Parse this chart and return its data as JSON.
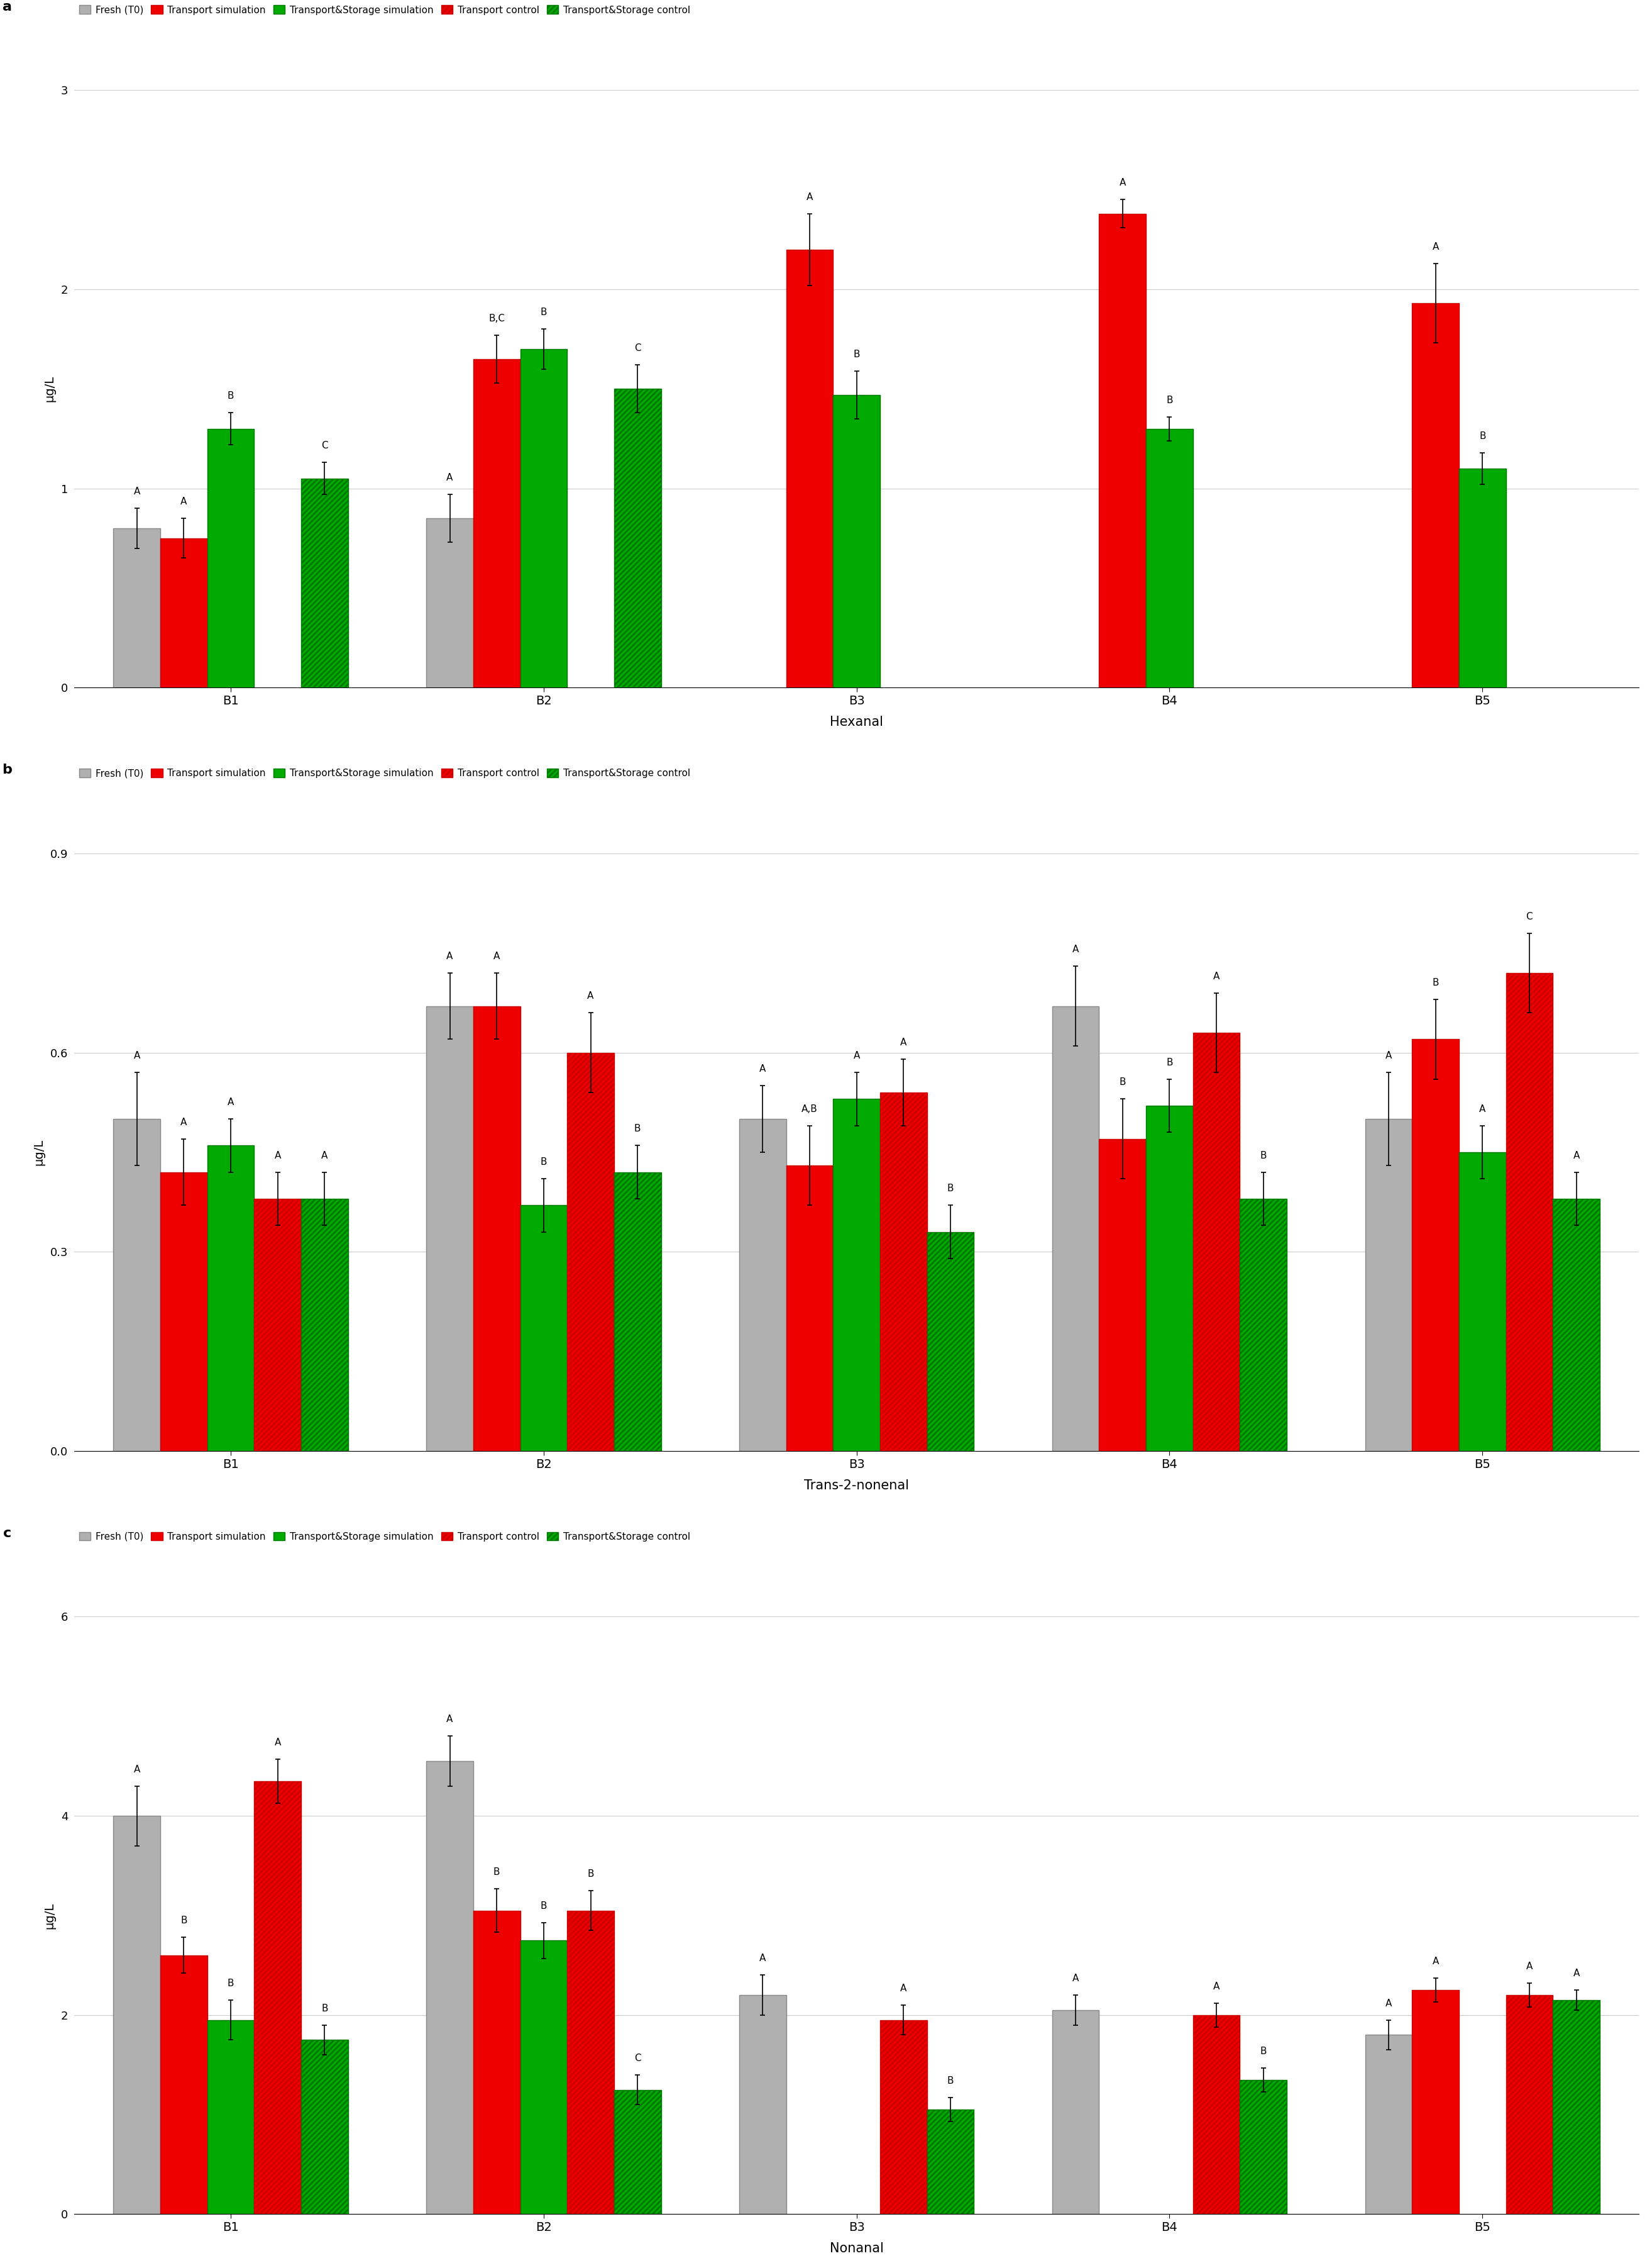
{
  "panel_a": {
    "title_label": "a",
    "xlabel": "Hexanal",
    "ylabel": "μg/L",
    "ylim": [
      0,
      3
    ],
    "yticks": [
      0,
      1,
      2,
      3
    ],
    "ytick_labels": [
      "0",
      "1",
      "2",
      "3"
    ],
    "categories": [
      "B1",
      "B2",
      "B3",
      "B4",
      "B5"
    ],
    "series_values": {
      "Fresh (T0)": [
        0.8,
        0.85,
        null,
        null,
        null
      ],
      "Transport simulation": [
        0.75,
        1.65,
        2.2,
        2.38,
        1.93
      ],
      "Transport&Storage simulation": [
        1.3,
        1.7,
        1.47,
        1.3,
        1.1
      ],
      "Transport control": [
        null,
        null,
        null,
        null,
        null
      ],
      "Transport&Storage control": [
        1.05,
        1.5,
        null,
        null,
        null
      ]
    },
    "series_errors": {
      "Fresh (T0)": [
        0.1,
        0.12,
        null,
        null,
        null
      ],
      "Transport simulation": [
        0.1,
        0.12,
        0.18,
        0.07,
        0.2
      ],
      "Transport&Storage simulation": [
        0.08,
        0.1,
        0.12,
        0.06,
        0.08
      ],
      "Transport control": [
        null,
        null,
        null,
        null,
        null
      ],
      "Transport&Storage control": [
        0.08,
        0.12,
        null,
        null,
        null
      ]
    },
    "series_letters": {
      "Fresh (T0)": [
        "A",
        "A",
        null,
        null,
        null
      ],
      "Transport simulation": [
        "A",
        "B,C",
        "A",
        "A",
        "A"
      ],
      "Transport&Storage simulation": [
        "B",
        "B",
        "B",
        "B",
        "B"
      ],
      "Transport control": [
        null,
        null,
        null,
        null,
        null
      ],
      "Transport&Storage control": [
        "C",
        "C",
        null,
        null,
        null
      ]
    }
  },
  "panel_b": {
    "title_label": "b",
    "xlabel": "Trans-2-nonenal",
    "ylabel": "μg/L",
    "ylim": [
      0.0,
      0.9
    ],
    "yticks": [
      0.0,
      0.3,
      0.6,
      0.9
    ],
    "ytick_labels": [
      "0.0",
      "0.3",
      "0.6",
      "0.9"
    ],
    "categories": [
      "B1",
      "B2",
      "B3",
      "B4",
      "B5"
    ],
    "series_values": {
      "Fresh (T0)": [
        0.5,
        0.67,
        0.5,
        0.67,
        0.5
      ],
      "Transport simulation": [
        0.42,
        0.67,
        0.43,
        0.47,
        0.62
      ],
      "Transport&Storage simulation": [
        0.46,
        0.37,
        0.53,
        0.52,
        0.45
      ],
      "Transport control": [
        0.38,
        0.6,
        0.54,
        0.63,
        0.72
      ],
      "Transport&Storage control": [
        0.38,
        0.42,
        0.33,
        0.38,
        0.38
      ]
    },
    "series_errors": {
      "Fresh (T0)": [
        0.07,
        0.05,
        0.05,
        0.06,
        0.07
      ],
      "Transport simulation": [
        0.05,
        0.05,
        0.06,
        0.06,
        0.06
      ],
      "Transport&Storage simulation": [
        0.04,
        0.04,
        0.04,
        0.04,
        0.04
      ],
      "Transport control": [
        0.04,
        0.06,
        0.05,
        0.06,
        0.06
      ],
      "Transport&Storage control": [
        0.04,
        0.04,
        0.04,
        0.04,
        0.04
      ]
    },
    "series_letters": {
      "Fresh (T0)": [
        "A",
        "A",
        "A",
        "A",
        "A"
      ],
      "Transport simulation": [
        "A",
        "A",
        "A,B",
        "B",
        "B"
      ],
      "Transport&Storage simulation": [
        "A",
        "B",
        "A",
        "B",
        "A"
      ],
      "Transport control": [
        "A",
        "A",
        "A",
        "A",
        "C"
      ],
      "Transport&Storage control": [
        "A",
        "B",
        "B",
        "B",
        "A"
      ]
    }
  },
  "panel_c": {
    "title_label": "c",
    "xlabel": "Nonanal",
    "ylabel": "μg/L",
    "ylim": [
      0,
      6
    ],
    "yticks": [
      0,
      2,
      4,
      6
    ],
    "ytick_labels": [
      "0",
      "2",
      "4",
      "6"
    ],
    "categories": [
      "B1",
      "B2",
      "B3",
      "B4",
      "B5"
    ],
    "series_values": {
      "Fresh (T0)": [
        4.0,
        4.55,
        2.2,
        2.05,
        1.8
      ],
      "Transport simulation": [
        2.6,
        3.05,
        null,
        null,
        2.25
      ],
      "Transport&Storage simulation": [
        1.95,
        2.75,
        null,
        null,
        null
      ],
      "Transport control": [
        4.35,
        3.05,
        1.95,
        2.0,
        2.2
      ],
      "Transport&Storage control": [
        1.75,
        1.25,
        1.05,
        1.35,
        2.15
      ]
    },
    "series_errors": {
      "Fresh (T0)": [
        0.3,
        0.25,
        0.2,
        0.15,
        0.15
      ],
      "Transport simulation": [
        0.18,
        0.22,
        null,
        null,
        0.12
      ],
      "Transport&Storage simulation": [
        0.2,
        0.18,
        null,
        null,
        null
      ],
      "Transport control": [
        0.22,
        0.2,
        0.15,
        0.12,
        0.12
      ],
      "Transport&Storage control": [
        0.15,
        0.15,
        0.12,
        0.12,
        0.1
      ]
    },
    "series_letters": {
      "Fresh (T0)": [
        "A",
        "A",
        "A",
        "A",
        "A"
      ],
      "Transport simulation": [
        "B",
        "B",
        null,
        null,
        "A"
      ],
      "Transport&Storage simulation": [
        "B",
        "B",
        null,
        null,
        null
      ],
      "Transport control": [
        "A",
        "B",
        "A",
        "A",
        "A"
      ],
      "Transport&Storage control": [
        "B",
        "C",
        "B",
        "B",
        "A"
      ]
    }
  },
  "series_order": [
    "Fresh (T0)",
    "Transport simulation",
    "Transport&Storage simulation",
    "Transport control",
    "Transport&Storage control"
  ],
  "bar_facecolors": {
    "Fresh (T0)": "#b0b0b0",
    "Transport simulation": "#ee0000",
    "Transport&Storage simulation": "#00aa00",
    "Transport control": "#ee0000",
    "Transport&Storage control": "#00aa00"
  },
  "bar_edgecolors": {
    "Fresh (T0)": "#888888",
    "Transport simulation": "#cc0000",
    "Transport&Storage simulation": "#007700",
    "Transport control": "#cc0000",
    "Transport&Storage control": "#007700"
  },
  "hatches": {
    "Fresh (T0)": "",
    "Transport simulation": "",
    "Transport&Storage simulation": "",
    "Transport control": "////",
    "Transport&Storage control": "////"
  }
}
